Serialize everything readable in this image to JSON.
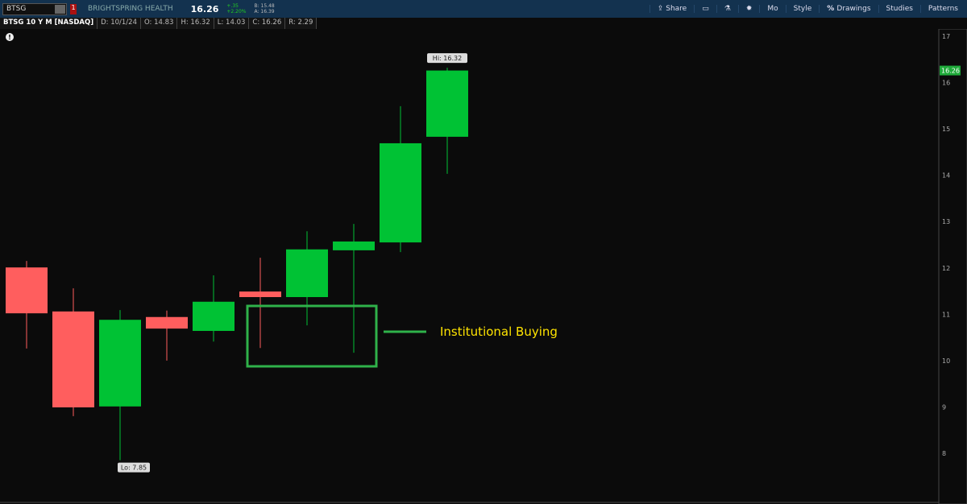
{
  "header": {
    "symbol": "BTSG",
    "company": "BRIGHTSPRING HEALTH",
    "last": "16.26",
    "change": "+.35",
    "change_pct": "+2.20%",
    "bid": "B: 15.48",
    "ask": "A: 16.39",
    "alert_badge": "1"
  },
  "toolbar": {
    "share": "Share",
    "mo": "Mo",
    "style": "Style",
    "drawings": "Drawings",
    "studies": "Studies",
    "patterns": "Patterns"
  },
  "info_bar": {
    "title": "BTSG 10 Y M [NASDAQ]",
    "date": "D: 10/1/24",
    "open": "O: 14.83",
    "high": "H: 16.32",
    "low": "L: 14.03",
    "close": "C: 16.26",
    "range": "R: 2.29"
  },
  "colors": {
    "up": "#00c234",
    "down": "#ff5e5e",
    "annotation": "#2fb24a",
    "annotation_text": "#ffe400",
    "price_tag": "#1faa3a"
  },
  "chart_data": {
    "type": "candlestick",
    "ylim": [
      7.5,
      17.1
    ],
    "yticks": [
      8,
      9,
      10,
      11,
      12,
      13,
      14,
      15,
      16,
      17
    ],
    "last_price_label": "16.26",
    "hi_label": "Hi: 16.32",
    "lo_label": "Lo: 7.85",
    "annotation": "Institutional Buying",
    "candles": [
      {
        "o": 12.01,
        "h": 12.15,
        "l": 10.26,
        "c": 11.02
      },
      {
        "o": 11.06,
        "h": 11.56,
        "l": 8.8,
        "c": 8.99
      },
      {
        "o": 9.01,
        "h": 11.09,
        "l": 7.85,
        "c": 10.88
      },
      {
        "o": 10.94,
        "h": 11.08,
        "l": 10.0,
        "c": 10.69
      },
      {
        "o": 10.64,
        "h": 11.84,
        "l": 10.41,
        "c": 11.27
      },
      {
        "o": 11.49,
        "h": 12.22,
        "l": 10.27,
        "c": 11.37
      },
      {
        "o": 11.37,
        "h": 12.79,
        "l": 10.76,
        "c": 12.4
      },
      {
        "o": 12.38,
        "h": 12.95,
        "l": 10.17,
        "c": 12.57
      },
      {
        "o": 12.55,
        "h": 15.49,
        "l": 12.34,
        "c": 14.69
      },
      {
        "o": 14.83,
        "h": 16.32,
        "l": 14.03,
        "c": 16.26
      }
    ]
  }
}
